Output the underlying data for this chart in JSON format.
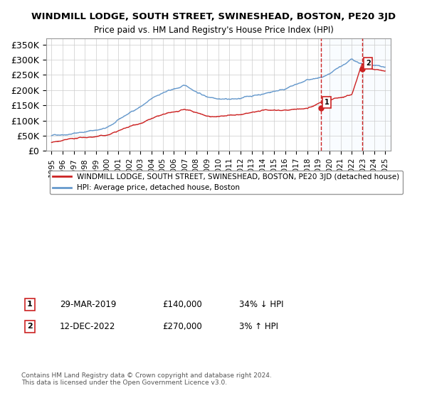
{
  "title": "WINDMILL LODGE, SOUTH STREET, SWINESHEAD, BOSTON, PE20 3JD",
  "subtitle": "Price paid vs. HM Land Registry's House Price Index (HPI)",
  "ylabel_ticks": [
    "£0",
    "£50K",
    "£100K",
    "£150K",
    "£200K",
    "£250K",
    "£300K",
    "£350K"
  ],
  "ytick_values": [
    0,
    50000,
    100000,
    150000,
    200000,
    250000,
    300000,
    350000
  ],
  "ylim": [
    0,
    370000
  ],
  "hpi_color": "#6699cc",
  "price_color": "#cc2222",
  "sale1_year": 2019.23,
  "sale1_price": 140000,
  "sale1_label": "1",
  "sale1_date": "29-MAR-2019",
  "sale1_hpi": "34% ↓ HPI",
  "sale2_year": 2022.95,
  "sale2_price": 270000,
  "sale2_label": "2",
  "sale2_date": "12-DEC-2022",
  "sale2_hpi": "3% ↑ HPI",
  "legend_property": "WINDMILL LODGE, SOUTH STREET, SWINESHEAD, BOSTON, PE20 3JD (detached house)",
  "legend_hpi": "HPI: Average price, detached house, Boston",
  "footnote": "Contains HM Land Registry data © Crown copyright and database right 2024.\nThis data is licensed under the Open Government Licence v3.0.",
  "shaded_color": "#ddeeff",
  "background_color": "#ffffff",
  "grid_color": "#cccccc"
}
